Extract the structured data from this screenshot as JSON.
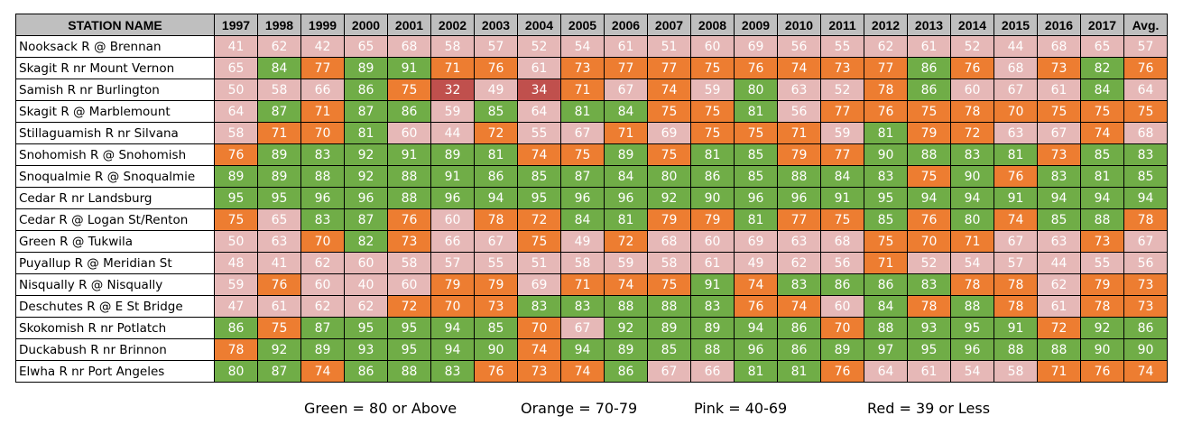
{
  "table": {
    "station_header": "STATION NAME",
    "year_headers": [
      "1997",
      "1998",
      "1999",
      "2000",
      "2001",
      "2002",
      "2003",
      "2004",
      "2005",
      "2006",
      "2007",
      "2008",
      "2009",
      "2010",
      "2011",
      "2012",
      "2013",
      "2014",
      "2015",
      "2016",
      "2017",
      "Avg."
    ],
    "rows": [
      {
        "station": "Nooksack R @ Brennan",
        "values": [
          41,
          62,
          42,
          65,
          68,
          58,
          57,
          52,
          54,
          61,
          51,
          60,
          69,
          56,
          55,
          62,
          61,
          52,
          44,
          68,
          65,
          57
        ]
      },
      {
        "station": "Skagit R nr Mount Vernon",
        "values": [
          65,
          84,
          77,
          89,
          91,
          71,
          76,
          61,
          73,
          77,
          77,
          75,
          76,
          74,
          73,
          77,
          86,
          76,
          68,
          73,
          82,
          76
        ]
      },
      {
        "station": "Samish R nr Burlington",
        "values": [
          50,
          58,
          66,
          86,
          75,
          32,
          49,
          34,
          71,
          67,
          74,
          59,
          80,
          63,
          52,
          78,
          86,
          60,
          67,
          61,
          84,
          64
        ]
      },
      {
        "station": "Skagit R @ Marblemount",
        "values": [
          64,
          87,
          71,
          87,
          86,
          59,
          85,
          64,
          81,
          84,
          75,
          75,
          81,
          56,
          77,
          76,
          75,
          78,
          70,
          75,
          75,
          75
        ]
      },
      {
        "station": "Stillaguamish R nr Silvana",
        "values": [
          58,
          71,
          70,
          81,
          60,
          44,
          72,
          55,
          67,
          71,
          69,
          75,
          75,
          71,
          59,
          81,
          79,
          72,
          63,
          67,
          74,
          68
        ]
      },
      {
        "station": "Snohomish R @ Snohomish",
        "values": [
          76,
          89,
          83,
          92,
          91,
          89,
          81,
          74,
          75,
          89,
          75,
          81,
          85,
          79,
          77,
          90,
          88,
          83,
          81,
          73,
          85,
          83
        ]
      },
      {
        "station": "Snoqualmie R @ Snoqualmie",
        "values": [
          89,
          89,
          88,
          92,
          88,
          91,
          86,
          85,
          87,
          84,
          80,
          86,
          85,
          88,
          84,
          83,
          75,
          90,
          76,
          83,
          81,
          85
        ]
      },
      {
        "station": "Cedar R nr Landsburg",
        "values": [
          95,
          95,
          96,
          96,
          88,
          96,
          94,
          95,
          96,
          96,
          92,
          90,
          96,
          96,
          91,
          95,
          94,
          94,
          91,
          94,
          94,
          94
        ]
      },
      {
        "station": "Cedar R @ Logan St/Renton",
        "values": [
          75,
          65,
          83,
          87,
          76,
          60,
          78,
          72,
          84,
          81,
          79,
          79,
          81,
          77,
          75,
          85,
          76,
          80,
          74,
          85,
          88,
          78
        ]
      },
      {
        "station": "Green R @ Tukwila",
        "values": [
          50,
          63,
          70,
          82,
          73,
          66,
          67,
          75,
          49,
          72,
          68,
          60,
          69,
          63,
          68,
          75,
          70,
          71,
          67,
          63,
          73,
          67
        ]
      },
      {
        "station": "Puyallup R @ Meridian St",
        "values": [
          48,
          41,
          62,
          60,
          58,
          57,
          55,
          51,
          58,
          59,
          58,
          61,
          49,
          62,
          56,
          71,
          52,
          54,
          57,
          44,
          55,
          56
        ]
      },
      {
        "station": "Nisqually R @ Nisqually",
        "values": [
          59,
          76,
          60,
          40,
          60,
          79,
          79,
          69,
          71,
          74,
          75,
          91,
          74,
          83,
          86,
          86,
          83,
          78,
          78,
          62,
          79,
          73
        ]
      },
      {
        "station": "Deschutes R @ E St Bridge",
        "values": [
          47,
          61,
          62,
          62,
          72,
          70,
          73,
          83,
          83,
          88,
          88,
          83,
          76,
          74,
          60,
          84,
          78,
          88,
          78,
          61,
          78,
          73
        ]
      },
      {
        "station": "Skokomish R nr Potlatch",
        "values": [
          86,
          75,
          87,
          95,
          95,
          94,
          85,
          70,
          67,
          92,
          89,
          89,
          94,
          86,
          70,
          88,
          93,
          95,
          91,
          72,
          92,
          86
        ]
      },
      {
        "station": "Duckabush R nr Brinnon",
        "values": [
          78,
          92,
          89,
          93,
          95,
          94,
          90,
          74,
          94,
          89,
          85,
          88,
          96,
          86,
          89,
          97,
          95,
          96,
          88,
          88,
          90,
          90
        ]
      },
      {
        "station": "Elwha R nr Port Angeles",
        "values": [
          80,
          87,
          74,
          86,
          88,
          83,
          76,
          73,
          74,
          86,
          67,
          66,
          81,
          81,
          76,
          64,
          61,
          54,
          58,
          71,
          76,
          74
        ]
      }
    ]
  },
  "legend": {
    "green": "Green = 80 or Above",
    "orange": "Orange = 70-79",
    "pink": "Pink = 40-69",
    "red": "Red = 39 or Less"
  },
  "colors": {
    "green": "#70ad47",
    "orange": "#ed7d31",
    "pink": "#e6b8b7",
    "red": "#c0504d",
    "header": "#bfbfbf"
  }
}
